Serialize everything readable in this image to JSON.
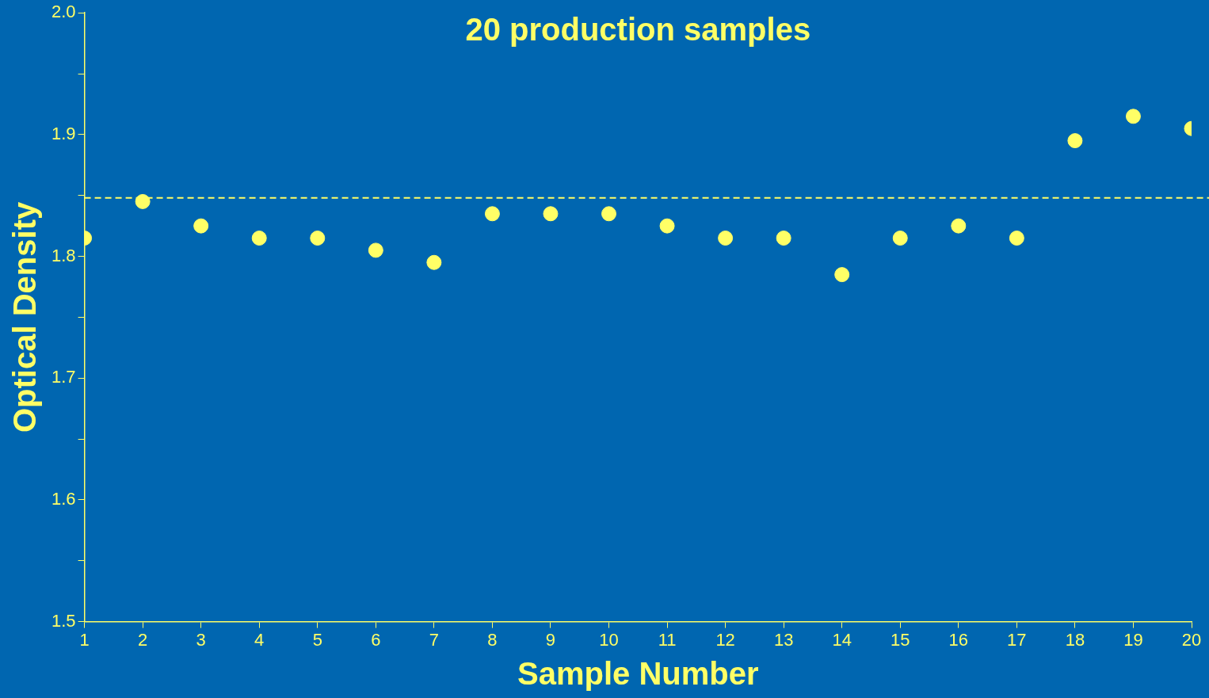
{
  "chart_data": {
    "type": "scatter",
    "title": "20 production samples",
    "xlabel": "Sample Number",
    "ylabel": "Optical Density",
    "x": [
      1,
      2,
      3,
      4,
      5,
      6,
      7,
      8,
      9,
      10,
      11,
      12,
      13,
      14,
      15,
      16,
      17,
      18,
      19,
      20
    ],
    "series": [
      {
        "color": "#ffff66",
        "values": [
          1.815,
          1.845,
          1.825,
          1.815,
          1.815,
          1.805,
          1.795,
          1.835,
          1.835,
          1.835,
          1.825,
          1.815,
          1.815,
          1.785,
          1.815,
          1.825,
          1.815,
          1.895,
          1.915,
          1.905
        ]
      }
    ],
    "xlim": [
      1,
      20
    ],
    "xticks": [
      1,
      2,
      3,
      4,
      5,
      6,
      7,
      8,
      9,
      10,
      11,
      12,
      13,
      14,
      15,
      16,
      17,
      18,
      19,
      20
    ],
    "ylim": [
      1.5,
      2.0
    ],
    "yticks": [
      "1.5",
      {
        "value": 1.55,
        "label": null
      },
      1.6,
      {
        "value": 1.65,
        "label": null
      },
      1.7,
      {
        "value": 1.75,
        "label": null
      },
      1.8,
      {
        "value": 1.85,
        "label": null
      },
      1.9,
      {
        "value": 1.95,
        "label": null
      },
      "2.0"
    ],
    "ref_lines": [
      {
        "axis": "y",
        "value": 1.848,
        "color": "#ffff66",
        "line_style": "dashed"
      }
    ],
    "marker": "circle",
    "grid": false,
    "legend": false
  }
}
